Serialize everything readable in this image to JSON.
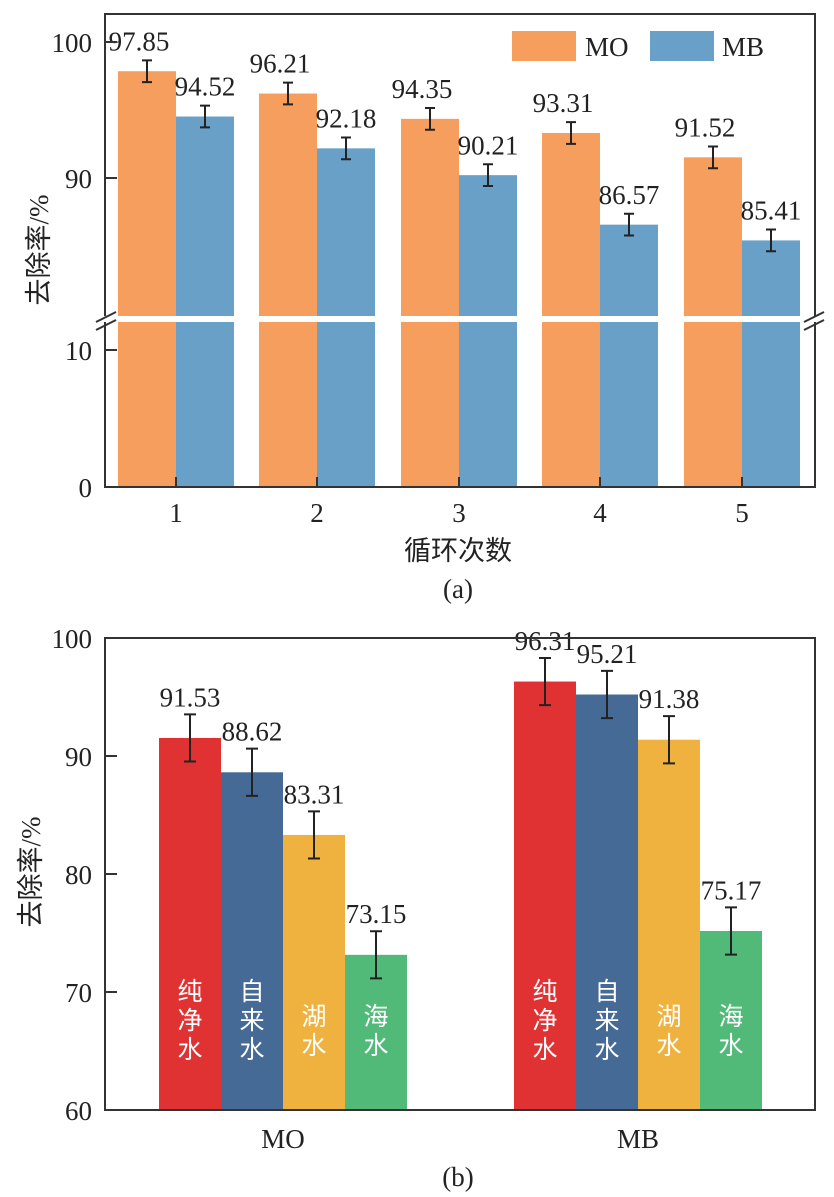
{
  "chart_data": [
    {
      "type": "bar",
      "panel_label": "(a)",
      "xlabel": "循环次数",
      "ylabel": "去除率/%",
      "categories": [
        "1",
        "2",
        "3",
        "4",
        "5"
      ],
      "series": [
        {
          "name": "MO",
          "color": "#F59E5E",
          "values": [
            97.85,
            96.21,
            94.35,
            93.31,
            91.52
          ]
        },
        {
          "name": "MB",
          "color": "#68A0C8",
          "values": [
            94.52,
            92.18,
            90.21,
            86.57,
            85.41
          ]
        }
      ],
      "error": 0.8,
      "axis_break": true,
      "yticks": [
        0,
        10,
        90,
        100
      ],
      "ylim_lower": [
        0,
        12
      ],
      "ylim_upper": [
        80,
        102
      ],
      "legend": "top-right"
    },
    {
      "type": "bar",
      "panel_label": "(b)",
      "xlabel": "",
      "ylabel": "去除率/%",
      "categories": [
        "MO",
        "MB"
      ],
      "series": [
        {
          "name": "纯净水",
          "color": "#E03232",
          "values": [
            91.53,
            96.31
          ]
        },
        {
          "name": "自来水",
          "color": "#456A96",
          "values": [
            88.62,
            95.21
          ]
        },
        {
          "name": "湖水",
          "color": "#F0B23E",
          "values": [
            83.31,
            91.38
          ]
        },
        {
          "name": "海水",
          "color": "#52BA78",
          "values": [
            73.15,
            75.17
          ]
        }
      ],
      "error": 2,
      "yticks": [
        60,
        70,
        80,
        90,
        100
      ],
      "ylim": [
        60,
        100
      ],
      "legend": "in-bar labels"
    }
  ]
}
